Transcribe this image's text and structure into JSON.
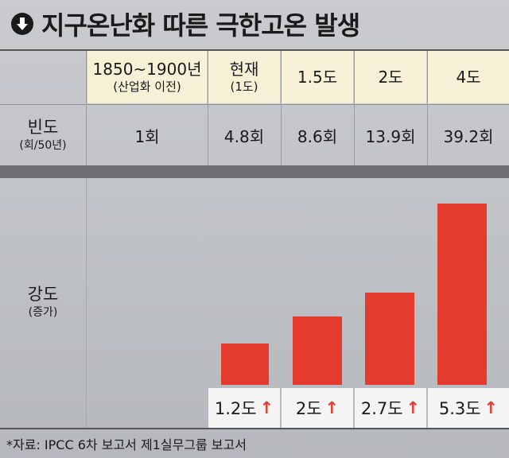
{
  "title": "지구온난화 따른 극한고온 발생",
  "title_icon": "down-arrow-circle-icon",
  "columns": [
    {
      "main": "1850~1900년",
      "sub": "(산업화 이전)"
    },
    {
      "main": "현재",
      "sub": "(1도)"
    },
    {
      "main": "1.5도",
      "sub": ""
    },
    {
      "main": "2도",
      "sub": ""
    },
    {
      "main": "4도",
      "sub": ""
    }
  ],
  "rows": {
    "frequency": {
      "label": "빈도",
      "sublabel": "(회/50년)"
    },
    "intensity": {
      "label": "강도",
      "sublabel": "(증가)"
    }
  },
  "chart_data": {
    "type": "table",
    "categories": [
      "1850~1900년 (산업화 이전)",
      "현재 (1도)",
      "1.5도",
      "2도",
      "4도"
    ],
    "frequency_labels": [
      "1회",
      "4.8회",
      "8.6회",
      "13.9회",
      "39.2회"
    ],
    "frequency_values": [
      1,
      4.8,
      8.6,
      13.9,
      39.2
    ],
    "intensity_labels": [
      "",
      "1.2도",
      "2도",
      "2.7도",
      "5.3도"
    ],
    "intensity_values": [
      null,
      1.2,
      2,
      2.7,
      5.3
    ],
    "intensity_ylim": [
      0,
      5.3
    ]
  },
  "arrow_glyph": "↑",
  "colors": {
    "bar": "#e53b2f",
    "header_bg": "#f6f1d6",
    "arrow": "#e53b2f"
  },
  "source": "*자료: IPCC 6차 보고서 제1실무그룹 보고서"
}
